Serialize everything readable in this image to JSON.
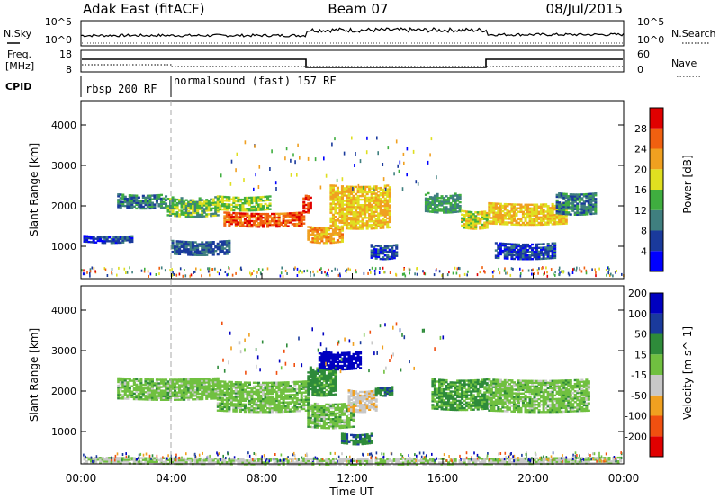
{
  "header": {
    "title_left": "Adak East (fitACF)",
    "title_center": "Beam 07",
    "title_right": "08/Jul/2015"
  },
  "noise_panel": {
    "left_label": "N.Sky",
    "right_label": "N.Search",
    "left_ticks": [
      "10^5",
      "10^0"
    ],
    "right_ticks": [
      "10^5",
      "10^0"
    ]
  },
  "freq_panel": {
    "left_label_1": "Freq.",
    "left_label_2": "[MHz]",
    "right_label": "Nave",
    "left_ticks": [
      "18",
      "8"
    ],
    "right_ticks": [
      "60",
      "0"
    ]
  },
  "cpid_panel": {
    "label": "CPID",
    "segments": [
      {
        "text": "rbsp 200 RF",
        "start": "00:00",
        "end": "04:00"
      },
      {
        "text": "normalsound (fast) 157 RF",
        "start": "04:00",
        "end": "00:00"
      }
    ]
  },
  "colors": {
    "power": [
      "#0000ff",
      "#1a3a9c",
      "#3f7f7f",
      "#3fae3f",
      "#dfdf20",
      "#f0a020",
      "#f06010",
      "#e00000"
    ],
    "velocity": [
      "#e00000",
      "#f05010",
      "#f0a020",
      "#c8c8c8",
      "#70c040",
      "#2e8b3a",
      "#1a3a9c",
      "#0000c0"
    ],
    "ground_scatter": "#a0a0a0"
  },
  "chart_data": [
    {
      "type": "heatmap",
      "name": "power",
      "ylabel": "Slant Range [km]",
      "xlabel": "",
      "ylim": [
        200,
        4600
      ],
      "xlim_hours": [
        0,
        24
      ],
      "yticks": [
        "1000",
        "2000",
        "3000",
        "4000"
      ],
      "colorbar": {
        "label": "Power [dB]",
        "ticks": [
          "4",
          "8",
          "12",
          "16",
          "20",
          "24",
          "28"
        ],
        "range": [
          0,
          32
        ]
      },
      "bands": [
        {
          "t": [
            1.6,
            3.8
          ],
          "range_km": [
            1950,
            2300
          ],
          "level": 10
        },
        {
          "t": [
            3.8,
            6.0
          ],
          "range_km": [
            1750,
            2200
          ],
          "level": 14
        },
        {
          "t": [
            6.0,
            8.3
          ],
          "range_km": [
            1900,
            2250
          ],
          "level": 16
        },
        {
          "t": [
            6.3,
            9.8
          ],
          "range_km": [
            1500,
            1850
          ],
          "level": 26
        },
        {
          "t": [
            9.8,
            10.2
          ],
          "range_km": [
            1850,
            2300
          ],
          "level": 28
        },
        {
          "t": [
            10.0,
            11.5
          ],
          "range_km": [
            1100,
            1500
          ],
          "level": 22
        },
        {
          "t": [
            11.0,
            13.6
          ],
          "range_km": [
            1450,
            2500
          ],
          "level": 20
        },
        {
          "t": [
            4.0,
            6.5
          ],
          "range_km": [
            800,
            1150
          ],
          "level": 8
        },
        {
          "t": [
            12.8,
            13.9
          ],
          "range_km": [
            700,
            1050
          ],
          "level": 6
        },
        {
          "t": [
            15.2,
            16.8
          ],
          "range_km": [
            1850,
            2300
          ],
          "level": 12
        },
        {
          "t": [
            16.8,
            18.0
          ],
          "range_km": [
            1450,
            1900
          ],
          "level": 18
        },
        {
          "t": [
            18.0,
            21.5
          ],
          "range_km": [
            1550,
            2050
          ],
          "level": 20
        },
        {
          "t": [
            21.0,
            22.8
          ],
          "range_km": [
            1800,
            2300
          ],
          "level": 10
        },
        {
          "t": [
            0.1,
            2.3
          ],
          "range_km": [
            1100,
            1250
          ],
          "level": 6
        },
        {
          "t": [
            18.3,
            21.0
          ],
          "range_km": [
            700,
            1100
          ],
          "level": 6
        }
      ]
    },
    {
      "type": "heatmap",
      "name": "velocity",
      "ylabel": "Slant Range [km]",
      "xlabel": "Time UT",
      "ylim": [
        200,
        4600
      ],
      "xlim_hours": [
        0,
        24
      ],
      "xticks": [
        "00:00",
        "04:00",
        "08:00",
        "12:00",
        "16:00",
        "20:00",
        "00:00"
      ],
      "yticks": [
        "1000",
        "2000",
        "3000",
        "4000"
      ],
      "colorbar": {
        "label": "Velocity [m s^-1]",
        "ticks": [
          "-200",
          "-100",
          "-50",
          "-15",
          "15",
          "50",
          "100",
          "200"
        ],
        "range": [
          -250,
          250
        ]
      },
      "bands": [
        {
          "t": [
            1.6,
            6.0
          ],
          "range_km": [
            1800,
            2300
          ],
          "value": 0
        },
        {
          "t": [
            6.0,
            10.0
          ],
          "range_km": [
            1500,
            2250
          ],
          "value": 0
        },
        {
          "t": [
            10.0,
            11.2
          ],
          "range_km": [
            1900,
            2600
          ],
          "value": 30
        },
        {
          "t": [
            10.5,
            12.3
          ],
          "range_km": [
            2550,
            3000
          ],
          "value": 150
        },
        {
          "t": [
            10.0,
            12.0
          ],
          "range_km": [
            1100,
            1700
          ],
          "value": 0
        },
        {
          "t": [
            11.8,
            13.0
          ],
          "range_km": [
            1500,
            2000
          ],
          "value": -40
        },
        {
          "t": [
            13.0,
            13.7
          ],
          "range_km": [
            1900,
            2100
          ],
          "value": 40
        },
        {
          "t": [
            15.5,
            18.0
          ],
          "range_km": [
            1550,
            2300
          ],
          "value": 20
        },
        {
          "t": [
            18.0,
            22.5
          ],
          "range_km": [
            1500,
            2300
          ],
          "value": 0
        },
        {
          "t": [
            11.5,
            12.8
          ],
          "range_km": [
            700,
            950
          ],
          "value": 40
        },
        {
          "t": [
            0.1,
            23.9
          ],
          "range_km": [
            200,
            350
          ],
          "value": -20
        }
      ]
    }
  ]
}
